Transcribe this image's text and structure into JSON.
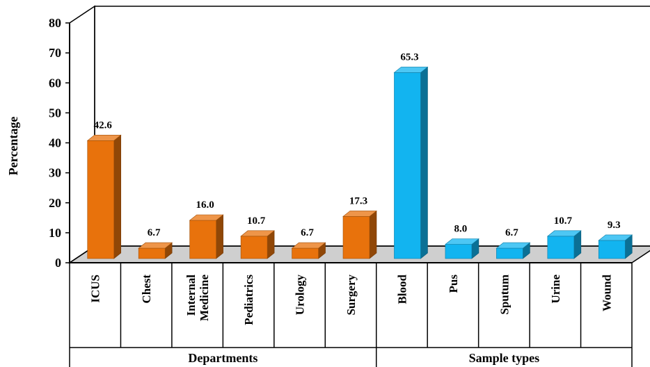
{
  "chart_data": {
    "type": "bar",
    "ylabel": "Percentage",
    "ylim": [
      0,
      80
    ],
    "yticks": [
      "0",
      "10",
      "20",
      "30",
      "40",
      "50",
      "60",
      "70",
      "80"
    ],
    "grid": false,
    "bar_style": "3d",
    "groups": [
      {
        "name": "Departments",
        "color": "#E8720C",
        "categories": [
          "ICUS",
          "Chest",
          "Internal Medicine",
          "Pediatrics",
          "Urology",
          "Surgery"
        ],
        "values": [
          42.6,
          6.7,
          16.0,
          10.7,
          6.7,
          17.3
        ],
        "labels": [
          "42.6",
          "6.7",
          "16.0",
          "10.7",
          "6.7",
          "17.3"
        ]
      },
      {
        "name": "Sample types",
        "color": "#12B4F0",
        "categories": [
          "Blood",
          "Pus",
          "Sputum",
          "Urine",
          "Wound"
        ],
        "values": [
          65.3,
          8.0,
          6.7,
          10.7,
          9.3
        ],
        "labels": [
          "65.3",
          "8.0",
          "6.7",
          "10.7",
          "9.3"
        ]
      }
    ],
    "category_lines": [
      [
        "ICUS"
      ],
      [
        "Chest"
      ],
      [
        "Internal",
        "Medicine"
      ],
      [
        "Pediatrics"
      ],
      [
        "Urology"
      ],
      [
        "Surgery"
      ],
      [
        "Blood"
      ],
      [
        "Pus"
      ],
      [
        "Sputum"
      ],
      [
        "Urine"
      ],
      [
        "Wound"
      ]
    ]
  }
}
